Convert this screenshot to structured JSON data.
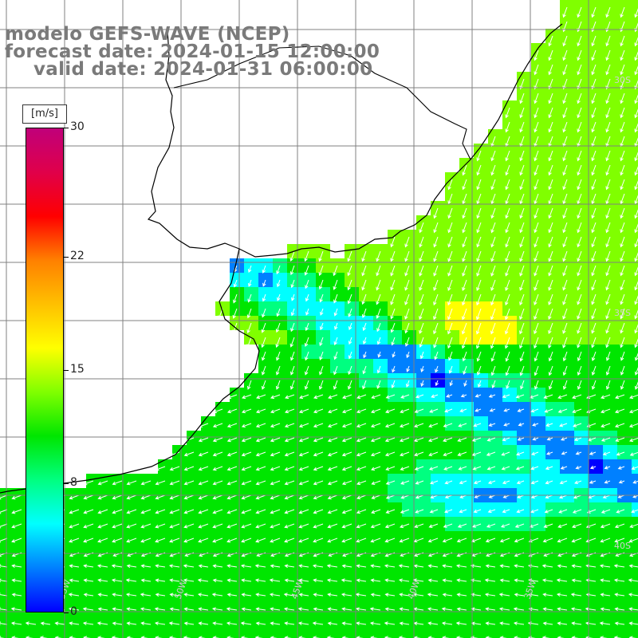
{
  "header": {
    "line1": "modelo GEFS-WAVE (NCEP)",
    "line2": "forecast date: 2024-01-15 12:00:00",
    "line3": "valid date: 2024-01-31 06:00:00"
  },
  "colorbar": {
    "unit": "[m/s]",
    "ticks": [
      {
        "value": 30,
        "label": "30"
      },
      {
        "value": 22,
        "label": "22"
      },
      {
        "value": 15,
        "label": "15"
      },
      {
        "value": 8,
        "label": "8"
      },
      {
        "value": 0,
        "label": "0"
      }
    ],
    "min": 0,
    "max": 30,
    "colors": [
      "#0000ff",
      "#0080ff",
      "#00ffff",
      "#00ff80",
      "#00e600",
      "#80ff00",
      "#ffff00",
      "#ffc000",
      "#ff8000",
      "#ff0000",
      "#e0004a",
      "#c0007a"
    ]
  },
  "map_grid": {
    "lon_labels": [
      "55W",
      "50W",
      "45W",
      "40W",
      "35W",
      "30W"
    ],
    "lat_labels": [
      "30S",
      "35S",
      "40S"
    ]
  },
  "colors": {
    "land": "#ffffff",
    "grid": "#808080",
    "coast": "#000000",
    "arrow": "#ffffff",
    "title": "#7a7a7a"
  }
}
